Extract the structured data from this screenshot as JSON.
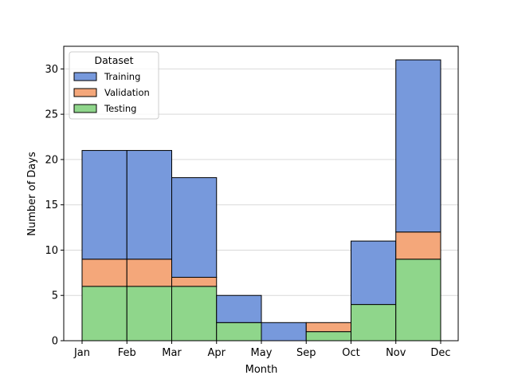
{
  "chart_data": {
    "type": "bar",
    "stacked": true,
    "title": "",
    "xlabel": "Month",
    "ylabel": "Number of Days",
    "x_ticks": [
      "Jan",
      "Feb",
      "Mar",
      "Apr",
      "May",
      "Sep",
      "Oct",
      "Nov",
      "Dec"
    ],
    "categories": [
      "Jan",
      "Feb",
      "Mar",
      "Apr",
      "May",
      "Sep",
      "Oct",
      "Nov"
    ],
    "y_ticks": [
      0,
      5,
      10,
      15,
      20,
      25,
      30
    ],
    "ylim": [
      0,
      32.5
    ],
    "grid": "horizontal",
    "legend": {
      "title": "Dataset",
      "placement": "upper-left",
      "entries": [
        "Training",
        "Validation",
        "Testing"
      ]
    },
    "series": [
      {
        "name": "Testing",
        "color": "#8fd68b",
        "values": [
          6,
          6,
          6,
          2,
          0,
          1,
          4,
          9
        ]
      },
      {
        "name": "Validation",
        "color": "#f4a77a",
        "values": [
          3,
          3,
          1,
          0,
          0,
          1,
          0,
          3
        ]
      },
      {
        "name": "Training",
        "color": "#7799dc",
        "values": [
          12,
          12,
          11,
          3,
          2,
          0,
          7,
          19
        ]
      }
    ]
  }
}
